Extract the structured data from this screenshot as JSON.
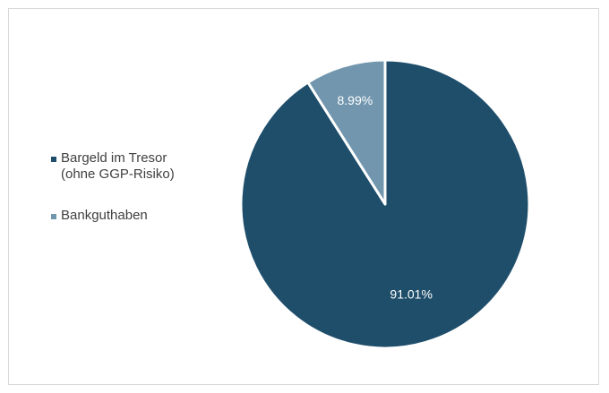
{
  "chart_data": {
    "type": "pie",
    "title": "",
    "legend_position": "left",
    "slices": [
      {
        "name": "Bargeld im Tresor\n(ohne GGP-Risiko)",
        "value": 91.01,
        "label": "91.01%",
        "color": "#1f4e6b"
      },
      {
        "name": "Bankguthaben",
        "value": 8.99,
        "label": "8.99%",
        "color": "#7196ae"
      }
    ]
  }
}
